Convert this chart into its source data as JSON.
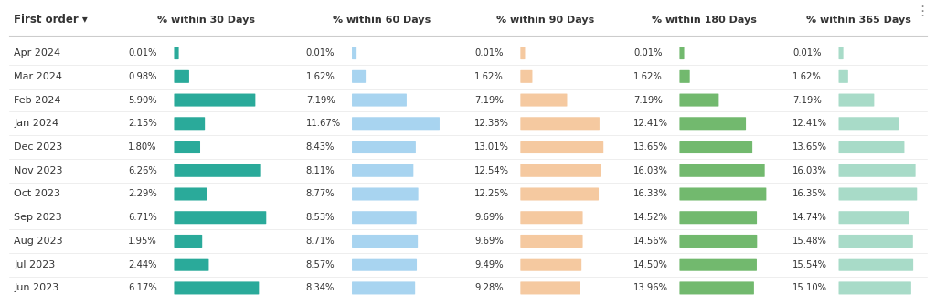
{
  "months": [
    "Apr 2024",
    "Mar 2024",
    "Feb 2024",
    "Jan 2024",
    "Dec 2023",
    "Nov 2023",
    "Oct 2023",
    "Sep 2023",
    "Aug 2023",
    "Jul 2023",
    "Jun 2023"
  ],
  "col_30": [
    0.01,
    0.98,
    5.9,
    2.15,
    1.8,
    6.26,
    2.29,
    6.71,
    1.95,
    2.44,
    6.17
  ],
  "col_60": [
    0.01,
    1.62,
    7.19,
    11.67,
    8.43,
    8.11,
    8.77,
    8.53,
    8.71,
    8.57,
    8.34
  ],
  "col_90": [
    0.01,
    1.62,
    7.19,
    12.38,
    13.01,
    12.54,
    12.25,
    9.69,
    9.69,
    9.49,
    9.28
  ],
  "col_180": [
    0.01,
    1.62,
    7.19,
    12.41,
    13.65,
    16.03,
    16.33,
    14.52,
    14.56,
    14.5,
    13.96
  ],
  "col_365": [
    0.01,
    1.62,
    7.19,
    12.41,
    13.65,
    16.03,
    16.35,
    14.74,
    15.48,
    15.54,
    15.1
  ],
  "color_30": "#2aaa9a",
  "color_60": "#a8d4f0",
  "color_90": "#f5c9a0",
  "color_180": "#72b96e",
  "color_365": "#a8dbc8",
  "header_30": "% within 30 Days",
  "header_60": "% within 60 Days",
  "header_90": "% within 90 Days",
  "header_180": "% within 180 Days",
  "header_365": "% within 365 Days",
  "header_first": "First order ▾",
  "bg_color": "#ffffff",
  "text_color": "#333333",
  "header_color": "#333333",
  "max_bar_30": 8.0,
  "max_bar_60": 14.0,
  "max_bar_90": 15.0,
  "max_bar_180": 18.0,
  "max_bar_365": 18.0
}
